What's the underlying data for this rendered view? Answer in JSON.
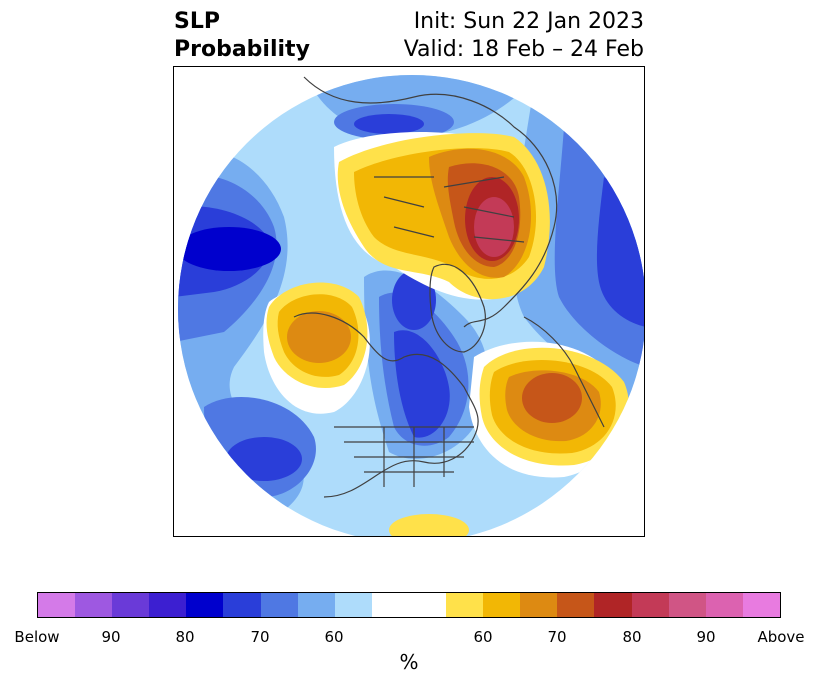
{
  "header": {
    "title_line1": "SLP",
    "title_line2": "Probability",
    "init_text": "Init: Sun 22 Jan 2023",
    "valid_text": "Valid: 18 Feb – 24 Feb"
  },
  "map": {
    "projection": "north polar stereographic"
  },
  "colorbar": {
    "unit": "%",
    "segments": [
      {
        "color": "#d47ae8"
      },
      {
        "color": "#9e58e1"
      },
      {
        "color": "#6a3ad8"
      },
      {
        "color": "#3c1fd1"
      },
      {
        "color": "#0000cd"
      },
      {
        "color": "#2a3ed9"
      },
      {
        "color": "#4f78e3"
      },
      {
        "color": "#76adf0"
      },
      {
        "color": "#aedcfb"
      },
      {
        "color": "#ffffff"
      },
      {
        "color": "#ffffff"
      },
      {
        "color": "#ffe14a"
      },
      {
        "color": "#f2b705"
      },
      {
        "color": "#dd8a12"
      },
      {
        "color": "#c65619"
      },
      {
        "color": "#b02526"
      },
      {
        "color": "#c33a57"
      },
      {
        "color": "#d05585"
      },
      {
        "color": "#dc62b0"
      },
      {
        "color": "#e87be0"
      }
    ],
    "tick_labels": [
      "Below",
      "90",
      "80",
      "70",
      "60",
      "60",
      "70",
      "80",
      "90",
      "Above"
    ]
  },
  "colors": {
    "blue_1": "#aedcfb",
    "blue_2": "#76adf0",
    "blue_3": "#4f78e3",
    "blue_4": "#2a3ed9",
    "blue_5": "#0000cd",
    "yellow_1": "#ffe14a",
    "yellow_2": "#f2b705",
    "orange_1": "#dd8a12",
    "orange_2": "#c65619",
    "red_1": "#b02526",
    "red_2": "#c33a57",
    "coastline": "#404040"
  }
}
